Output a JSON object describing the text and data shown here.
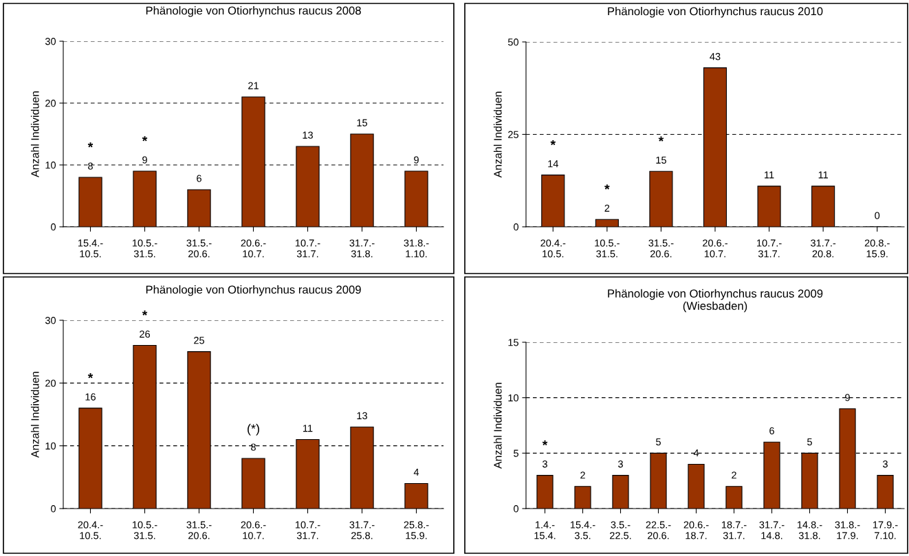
{
  "chart_data": [
    {
      "type": "bar",
      "title": "Phänologie von Otiorhynchus raucus 2008",
      "ylabel": "Anzahl Individuen",
      "categories": [
        "15.4.-\n10.5.",
        "10.5.-\n31.5.",
        "31.5.-\n20.6.",
        "20.6.-\n10.7.",
        "10.7.-\n31.7.",
        "31.7.-\n31.8.",
        "31.8.-\n1.10."
      ],
      "values": [
        8,
        9,
        6,
        21,
        13,
        15,
        9
      ],
      "color": "#993300",
      "ylim": [
        0,
        30
      ],
      "yticks": [
        0,
        10,
        20,
        30
      ],
      "grid": "y",
      "data_labels": true,
      "annotations": [
        {
          "text": "*",
          "x": "15.4.-\n10.5.",
          "y": 8
        },
        {
          "text": "*",
          "x": "10.5.-\n31.5.",
          "y": 9
        }
      ]
    },
    {
      "type": "bar",
      "title": "Phänologie von Otiorhynchus raucus 2010",
      "ylabel": "Anzahl Individuen",
      "categories": [
        "20.4.-\n10.5.",
        "10.5.-\n31.5.",
        "31.5.-\n20.6.",
        "20.6.-\n10.7.",
        "10.7.-\n31.7.",
        "31.7.-\n20.8.",
        "20.8.-\n15.9."
      ],
      "values": [
        14,
        2,
        15,
        43,
        11,
        11,
        0
      ],
      "color": "#993300",
      "ylim": [
        0,
        50
      ],
      "yticks": [
        0,
        25,
        50
      ],
      "grid": "y",
      "data_labels": true,
      "annotations": [
        {
          "text": "*",
          "x": "20.4.-\n10.5.",
          "y": 14
        },
        {
          "text": "*",
          "x": "10.5.-\n31.5.",
          "y": 2
        },
        {
          "text": "*",
          "x": "31.5.-\n20.6.",
          "y": 15
        }
      ]
    },
    {
      "type": "bar",
      "title": "Phänologie von Otiorhynchus raucus 2009",
      "ylabel": "Anzahl Individuen",
      "categories": [
        "20.4.-\n10.5.",
        "10.5.-\n31.5.",
        "31.5.-\n20.6.",
        "20.6.-\n10.7.",
        "10.7.-\n31.7.",
        "31.7.-\n25.8.",
        "25.8.-\n15.9."
      ],
      "values": [
        16,
        26,
        25,
        8,
        11,
        13,
        4
      ],
      "color": "#993300",
      "ylim": [
        0,
        30
      ],
      "yticks": [
        0,
        10,
        20,
        30
      ],
      "grid": "y",
      "data_labels": true,
      "annotations": [
        {
          "text": "*",
          "x": "20.4.-\n10.5.",
          "y": 16
        },
        {
          "text": "*",
          "x": "10.5.-\n31.5.",
          "y": 26
        },
        {
          "text": "(*)",
          "x": "20.6.-\n10.7.",
          "y": 8
        }
      ]
    },
    {
      "type": "bar",
      "title": "Phänologie von Otiorhynchus raucus 2009\n(Wiesbaden)",
      "ylabel": "Anzahl Individuen",
      "categories": [
        "1.4.-\n15.4.",
        "15.4.-\n3.5.",
        "3.5.-\n22.5.",
        "22.5.-\n20.6.",
        "20.6.-\n18.7.",
        "18.7.-\n31.7.",
        "31.7.-\n14.8.",
        "14.8.-\n31.8.",
        "31.8.-\n17.9.",
        "17.9.-\n7.10."
      ],
      "values": [
        3,
        2,
        3,
        5,
        4,
        2,
        6,
        5,
        9,
        3
      ],
      "color": "#993300",
      "ylim": [
        0,
        15
      ],
      "yticks": [
        0,
        5,
        10,
        15
      ],
      "grid": "y",
      "data_labels": true,
      "annotations": [
        {
          "text": "*",
          "x": "1.4.-\n15.4.",
          "y": 3
        }
      ]
    }
  ]
}
